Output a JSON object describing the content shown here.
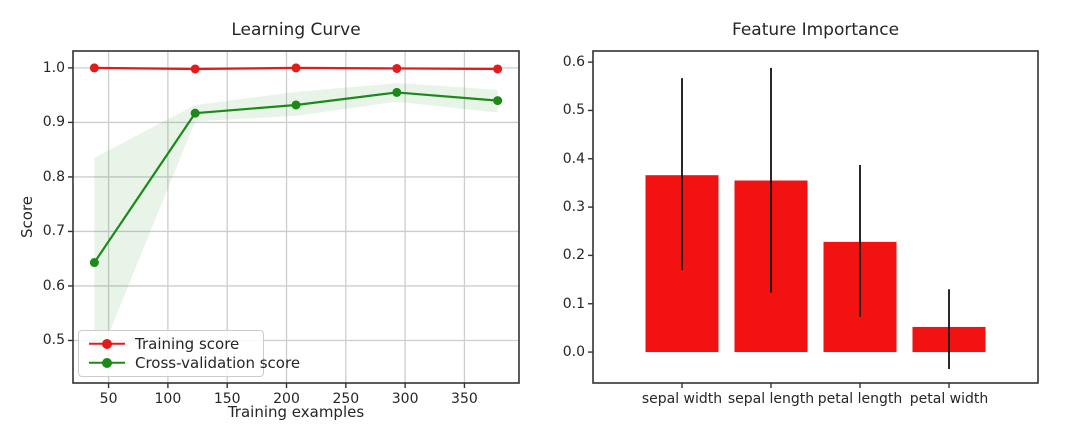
{
  "figure": {
    "background": "#ffffff",
    "text_color": "#262626",
    "grid_color": "#cdcdcd",
    "spine_color": "#333333"
  },
  "chart_data": [
    {
      "type": "line",
      "title": "Learning Curve",
      "xlabel": "Training examples",
      "ylabel": "Score",
      "grid": true,
      "legend_position": "lower left",
      "xlim": [
        20,
        396
      ],
      "ylim": [
        0.422,
        1.031
      ],
      "xticks": [
        50,
        100,
        150,
        200,
        250,
        300,
        350
      ],
      "yticks": [
        0.5,
        0.6,
        0.7,
        0.8,
        0.9,
        1.0
      ],
      "ytick_labels": [
        "0.5",
        "0.6",
        "0.7",
        "0.8",
        "0.9",
        "1.0"
      ],
      "x": [
        38,
        123,
        208,
        293,
        378
      ],
      "series": [
        {
          "name": "Training score",
          "color": "#e31b1b",
          "values": [
            1.0,
            0.998,
            1.0,
            0.999,
            0.998
          ]
        },
        {
          "name": "Cross-validation score",
          "color": "#1b8a1b",
          "values": [
            0.643,
            0.917,
            0.932,
            0.955,
            0.94
          ],
          "band_upper": [
            0.835,
            0.932,
            0.956,
            0.972,
            0.96
          ],
          "band_lower": [
            0.447,
            0.902,
            0.912,
            0.938,
            0.918
          ],
          "band_color": "rgba(44,150,44,0.10)"
        }
      ]
    },
    {
      "type": "bar",
      "title": "Feature Importance",
      "categories": [
        "sepal width",
        "sepal length",
        "petal length",
        "petal width"
      ],
      "values": [
        0.366,
        0.355,
        0.228,
        0.052
      ],
      "error_low": [
        0.17,
        0.123,
        0.073,
        -0.035
      ],
      "error_high": [
        0.567,
        0.588,
        0.387,
        0.13
      ],
      "bar_color": "#f21212",
      "error_color": "#111111",
      "grid": false,
      "ylim": [
        -0.064,
        0.623
      ],
      "yticks": [
        0.0,
        0.1,
        0.2,
        0.3,
        0.4,
        0.5,
        0.6
      ],
      "ytick_labels": [
        "0.0",
        "0.1",
        "0.2",
        "0.3",
        "0.4",
        "0.5",
        "0.6"
      ]
    }
  ]
}
